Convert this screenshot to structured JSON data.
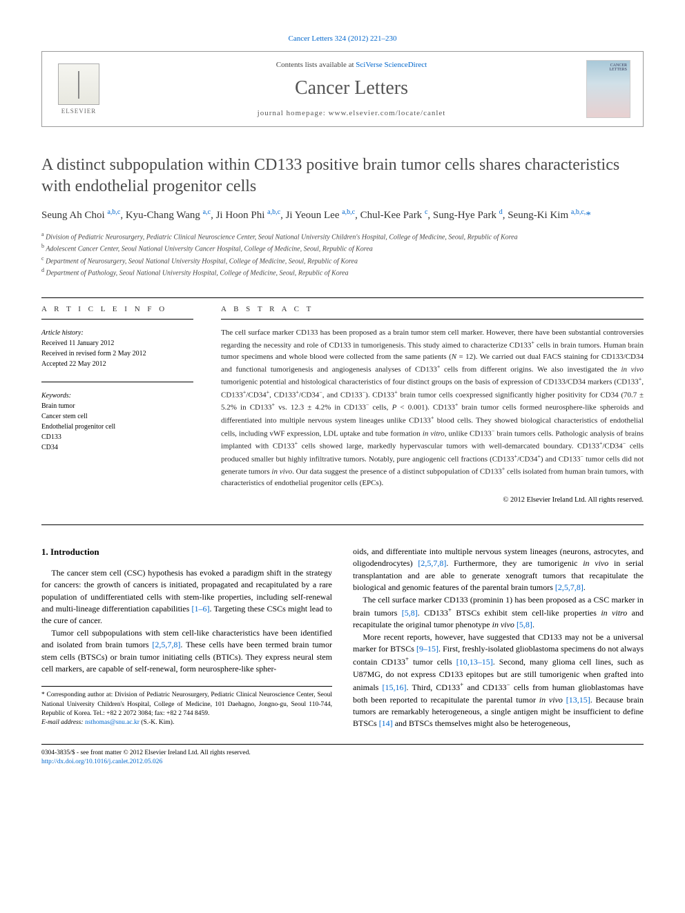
{
  "citation": "Cancer Letters 324 (2012) 221–230",
  "header": {
    "contents_prefix": "Contents lists available at ",
    "contents_link": "SciVerse ScienceDirect",
    "journal": "Cancer Letters",
    "homepage_prefix": "journal homepage: ",
    "homepage_url": "www.elsevier.com/locate/canlet",
    "publisher": "ELSEVIER"
  },
  "title": "A distinct subpopulation within CD133 positive brain tumor cells shares characteristics with endothelial progenitor cells",
  "authors_html": "Seung Ah Choi <sup>a,b,c</sup>, Kyu-Chang Wang <sup>a,c</sup>, Ji Hoon Phi <sup>a,b,c</sup>, Ji Yeoun Lee <sup>a,b,c</sup>, Chul-Kee Park <sup>c</sup>, Sung-Hye Park <sup>d</sup>, Seung-Ki Kim <sup>a,b,c,</sup><span class=\"corr\">*</span>",
  "affiliations": [
    "a Division of Pediatric Neurosurgery, Pediatric Clinical Neuroscience Center, Seoul National University Children's Hospital, College of Medicine, Seoul, Republic of Korea",
    "b Adolescent Cancer Center, Seoul National University Cancer Hospital, College of Medicine, Seoul, Republic of Korea",
    "c Department of Neurosurgery, Seoul National University Hospital, College of Medicine, Seoul, Republic of Korea",
    "d Department of Pathology, Seoul National University Hospital, College of Medicine, Seoul, Republic of Korea"
  ],
  "article_info": {
    "heading": "A R T I C L E   I N F O",
    "history_label": "Article history:",
    "history": [
      "Received 11 January 2012",
      "Received in revised form 2 May 2012",
      "Accepted 22 May 2012"
    ],
    "keywords_label": "Keywords:",
    "keywords": [
      "Brain tumor",
      "Cancer stem cell",
      "Endothelial progenitor cell",
      "CD133",
      "CD34"
    ]
  },
  "abstract": {
    "heading": "A B S T R A C T",
    "text_html": "The cell surface marker CD133 has been proposed as a brain tumor stem cell marker. However, there have been substantial controversies regarding the necessity and role of CD133 in tumorigenesis. This study aimed to characterize CD133<sup>+</sup> cells in brain tumors. Human brain tumor specimens and whole blood were collected from the same patients (<i>N</i> = 12). We carried out dual FACS staining for CD133/CD34 and functional tumorigenesis and angiogenesis analyses of CD133<sup>+</sup> cells from different origins. We also investigated the <i>in vivo</i> tumorigenic potential and histological characteristics of four distinct groups on the basis of expression of CD133/CD34 markers (CD133<sup>+</sup>, CD133<sup>+</sup>/CD34<sup>+</sup>, CD133<sup>+</sup>/CD34<sup>−</sup>, and CD133<sup>−</sup>). CD133<sup>+</sup> brain tumor cells coexpressed significantly higher positivity for CD34 (70.7 ± 5.2% in CD133<sup>+</sup> vs. 12.3 ± 4.2% in CD133<sup>−</sup> cells, <i>P</i> &lt; 0.001). CD133<sup>+</sup> brain tumor cells formed neurosphere-like spheroids and differentiated into multiple nervous system lineages unlike CD133<sup>+</sup> blood cells. They showed biological characteristics of endothelial cells, including vWF expression, LDL uptake and tube formation <i>in vitro</i>, unlike CD133<sup>−</sup> brain tumors cells. Pathologic analysis of brains implanted with CD133<sup>+</sup> cells showed large, markedly hypervascular tumors with well-demarcated boundary. CD133<sup>+</sup>/CD34<sup>−</sup> cells produced smaller but highly infiltrative tumors. Notably, pure angiogenic cell fractions (CD133<sup>+</sup>/CD34<sup>+</sup>) and CD133<sup>−</sup> tumor cells did not generate tumors <i>in vivo</i>. Our data suggest the presence of a distinct subpopulation of CD133<sup>+</sup> cells isolated from human brain tumors, with characteristics of endothelial progenitor cells (EPCs).",
    "copyright": "© 2012 Elsevier Ireland Ltd. All rights reserved."
  },
  "intro": {
    "heading": "1. Introduction",
    "p1_html": "The cancer stem cell (CSC) hypothesis has evoked a paradigm shift in the strategy for cancers: the growth of cancers is initiated, propagated and recapitulated by a rare population of undifferentiated cells with stem-like properties, including self-renewal and multi-lineage differentiation capabilities <span class=\"ref\">[1–6]</span>. Targeting these CSCs might lead to the cure of cancer.",
    "p2_html": "Tumor cell subpopulations with stem cell-like characteristics have been identified and isolated from brain tumors <span class=\"ref\">[2,5,7,8]</span>. These cells have been termed brain tumor stem cells (BTSCs) or brain tumor initiating cells (BTICs). They express neural stem cell markers, are capable of self-renewal, form neurosphere-like spher-",
    "p3_html": "oids, and differentiate into multiple nervous system lineages (neurons, astrocytes, and oligodendrocytes) <span class=\"ref\">[2,5,7,8]</span>. Furthermore, they are tumorigenic <i>in vivo</i> in serial transplantation and are able to generate xenograft tumors that recapitulate the biological and genomic features of the parental brain tumors <span class=\"ref\">[2,5,7,8]</span>.",
    "p4_html": "The cell surface marker CD133 (prominin 1) has been proposed as a CSC marker in brain tumors <span class=\"ref\">[5,8]</span>. CD133<sup>+</sup> BTSCs exhibit stem cell-like properties <i>in vitro</i> and recapitulate the original tumor phenotype <i>in vivo</i> <span class=\"ref\">[5,8]</span>.",
    "p5_html": "More recent reports, however, have suggested that CD133 may not be a universal marker for BTSCs <span class=\"ref\">[9–15]</span>. First, freshly-isolated glioblastoma specimens do not always contain CD133<sup>+</sup> tumor cells <span class=\"ref\">[10,13–15]</span>. Second, many glioma cell lines, such as U87MG, do not express CD133 epitopes but are still tumorigenic when grafted into animals <span class=\"ref\">[15,16]</span>. Third, CD133<sup>+</sup> and CD133<sup>−</sup> cells from human glioblastomas have both been reported to recapitulate the parental tumor <i>in vivo</i> <span class=\"ref\">[13,15]</span>. Because brain tumors are remarkably heterogeneous, a single antigen might be insufficient to define BTSCs <span class=\"ref\">[14]</span> and BTSCs themselves might also be heterogeneous,"
  },
  "footnote": {
    "corr_html": "* Corresponding author at: Division of Pediatric Neurosurgery, Pediatric Clinical Neuroscience Center, Seoul National University Children's Hospital, College of Medicine, 101 Daehagno, Jongno-gu, Seoul 110-744, Republic of Korea. Tel.: +82 2 2072 3084; fax: +82 2 744 8459.",
    "email_label": "E-mail address:",
    "email": "nsthomas@snu.ac.kr",
    "email_suffix": "(S.-K. Kim)."
  },
  "footer": {
    "line1": "0304-3835/$ - see front matter © 2012 Elsevier Ireland Ltd. All rights reserved.",
    "doi": "http://dx.doi.org/10.1016/j.canlet.2012.05.026"
  },
  "colors": {
    "link": "#0066cc",
    "text": "#000000",
    "heading_gray": "#4a4a4a"
  }
}
